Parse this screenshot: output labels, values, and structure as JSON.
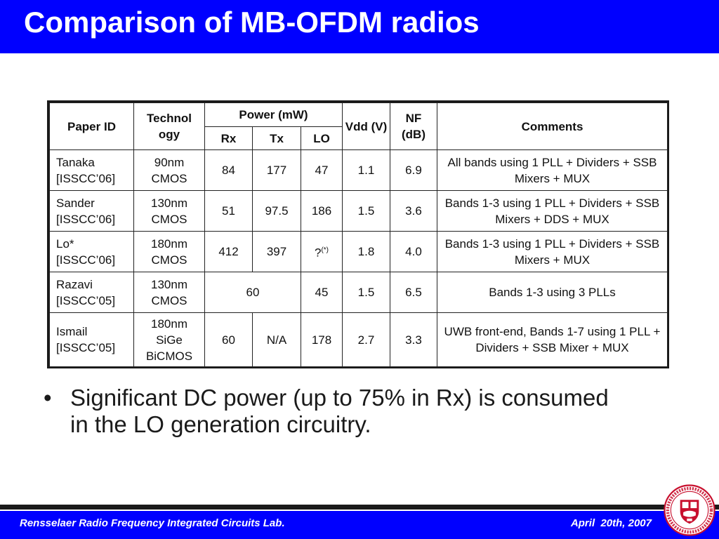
{
  "slide": {
    "title": "Comparison of MB-OFDM radios"
  },
  "table": {
    "headers": {
      "paper_id": "Paper ID",
      "technology": "Technol ogy",
      "power": "Power (mW)",
      "rx": "Rx",
      "tx": "Tx",
      "lo": "LO",
      "vdd": "Vdd (V)",
      "nf": "NF (dB)",
      "comments": "Comments"
    },
    "rows": [
      {
        "paper": "Tanaka [ISSCC’06]",
        "tech": "90nm CMOS",
        "rx": "84",
        "tx": "177",
        "lo": "47",
        "vdd": "1.1",
        "nf": "6.9",
        "comments": "All bands using 1 PLL + Dividers + SSB Mixers + MUX"
      },
      {
        "paper": "Sander [ISSCC’06]",
        "tech": "130nm CMOS",
        "rx": "51",
        "tx": "97.5",
        "lo": "186",
        "vdd": "1.5",
        "nf": "3.6",
        "comments": "Bands 1-3 using 1 PLL + Dividers + SSB Mixers + DDS + MUX"
      },
      {
        "paper": "Lo* [ISSCC’06]",
        "tech": "180nm CMOS",
        "rx": "412",
        "tx": "397",
        "lo": "?",
        "lo_note": "(*)",
        "vdd": "1.8",
        "nf": "4.0",
        "comments": "Bands 1-3 using 1 PLL + Dividers + SSB Mixers + MUX"
      },
      {
        "paper": "Razavi [ISSCC’05]",
        "tech": "130nm CMOS",
        "rxtx": "60",
        "lo": "45",
        "vdd": "1.5",
        "nf": "6.5",
        "comments": "Bands 1-3 using 3 PLLs"
      },
      {
        "paper": "Ismail [ISSCC’05]",
        "tech": "180nm SiGe BiCMOS",
        "rx": "60",
        "tx": "N/A",
        "lo": "178",
        "vdd": "2.7",
        "nf": "3.3",
        "comments": "UWB front-end, Bands 1-7 using 1 PLL + Dividers + SSB Mixer + MUX"
      }
    ]
  },
  "bullets": [
    {
      "symbol": "•",
      "text": "Significant DC power (up to 75% in Rx) is consumed in the LO generation circuitry."
    }
  ],
  "footer": {
    "lab": "Rensselaer Radio Frequency Integrated Circuits Lab.",
    "date": "April  20th, 2007"
  },
  "colors": {
    "title_bar": "#0000ff",
    "footer_band": "#0000ff",
    "seal_red": "#c8102e"
  },
  "logo": {
    "name": "rensselaer-seal",
    "lettering": "RENSSELAER POLYTECHNIC INSTITUTE 1824"
  }
}
